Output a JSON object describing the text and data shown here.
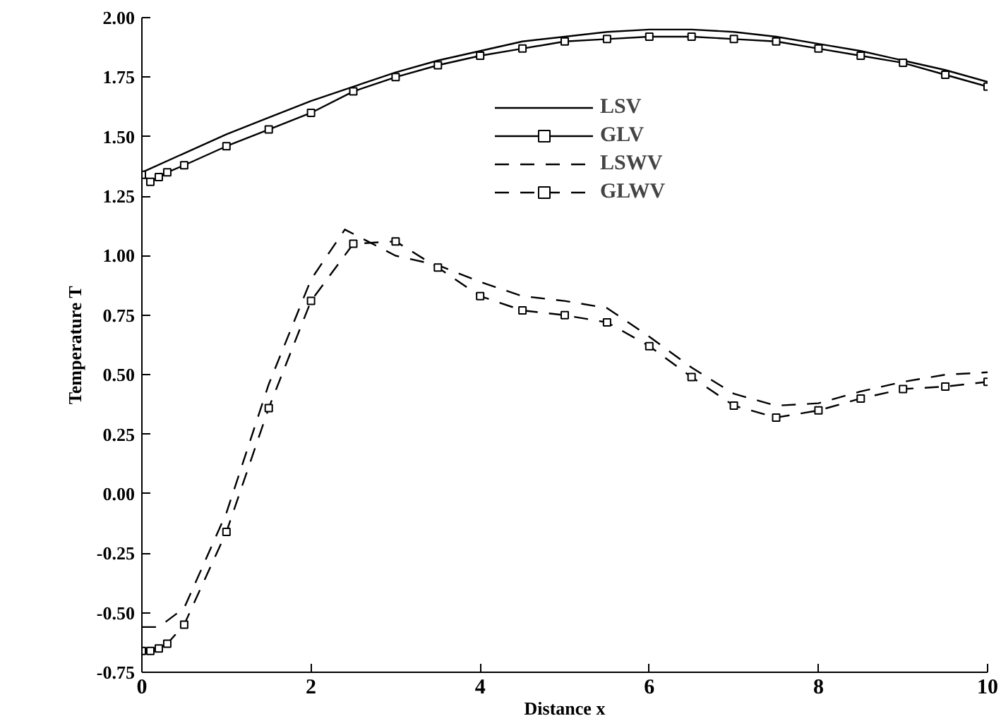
{
  "chart_data": {
    "type": "line",
    "xlabel": "Distance x",
    "ylabel": "Temperature T",
    "xlim": [
      0,
      10
    ],
    "ylim": [
      -0.75,
      2.0
    ],
    "xticks": [
      0,
      2,
      4,
      6,
      8,
      10
    ],
    "yticks": [
      {
        "value": -0.75,
        "label": "-0.75"
      },
      {
        "value": -0.5,
        "label": "-0.50"
      },
      {
        "value": -0.25,
        "label": "-0.25"
      },
      {
        "value": 0,
        "label": "0.00"
      },
      {
        "value": 0.25,
        "label": "0.25"
      },
      {
        "value": 0.5,
        "label": "0.50"
      },
      {
        "value": 0.75,
        "label": "0.75"
      },
      {
        "value": 1,
        "label": "1.00"
      },
      {
        "value": 1.25,
        "label": "1.25"
      },
      {
        "value": 1.5,
        "label": "1.50"
      },
      {
        "value": 1.75,
        "label": "1.75"
      },
      {
        "value": 2,
        "label": "2.00"
      }
    ],
    "grid": false,
    "legend": "top",
    "series": [
      {
        "name": "LSV",
        "color": "#000000",
        "line_style": "solid",
        "marker": "none",
        "x": [
          0,
          0.5,
          1,
          1.5,
          2,
          2.5,
          3,
          3.5,
          4,
          4.5,
          5,
          5.5,
          6,
          6.5,
          7,
          7.5,
          8,
          8.5,
          9,
          9.5,
          10
        ],
        "values": [
          1.35,
          1.43,
          1.51,
          1.58,
          1.65,
          1.71,
          1.77,
          1.82,
          1.86,
          1.9,
          1.92,
          1.94,
          1.95,
          1.95,
          1.94,
          1.92,
          1.89,
          1.86,
          1.82,
          1.78,
          1.73
        ]
      },
      {
        "name": "GLV",
        "color": "#000000",
        "line_style": "solid",
        "marker": "square",
        "x": [
          0,
          0.1,
          0.2,
          0.3,
          0.5,
          1,
          1.5,
          2,
          2.5,
          3,
          3.5,
          4,
          4.5,
          5,
          5.5,
          6,
          6.5,
          7,
          7.5,
          8,
          8.5,
          9,
          9.5,
          10
        ],
        "values": [
          1.34,
          1.31,
          1.33,
          1.35,
          1.38,
          1.46,
          1.53,
          1.6,
          1.69,
          1.75,
          1.8,
          1.84,
          1.87,
          1.9,
          1.91,
          1.92,
          1.92,
          1.91,
          1.9,
          1.87,
          1.84,
          1.81,
          1.76,
          1.71
        ]
      },
      {
        "name": "LSWV",
        "color": "#000000",
        "line_style": "dashed",
        "marker": "none",
        "x": [
          0,
          0.2,
          0.5,
          1,
          1.5,
          2,
          2.4,
          3,
          3.5,
          4,
          4.5,
          5,
          5.5,
          6,
          6.5,
          7,
          7.5,
          8,
          8.5,
          9,
          9.5,
          10
        ],
        "values": [
          -0.56,
          -0.56,
          -0.48,
          -0.08,
          0.46,
          0.9,
          1.11,
          1.0,
          0.96,
          0.89,
          0.83,
          0.81,
          0.78,
          0.66,
          0.53,
          0.42,
          0.37,
          0.38,
          0.43,
          0.47,
          0.5,
          0.51
        ]
      },
      {
        "name": "GLWV",
        "color": "#000000",
        "line_style": "dashed",
        "marker": "square",
        "x": [
          0,
          0.1,
          0.2,
          0.3,
          0.5,
          1,
          1.5,
          2,
          2.5,
          3,
          3.5,
          4,
          4.5,
          5,
          5.5,
          6,
          6.5,
          7,
          7.5,
          8,
          8.5,
          9,
          9.5,
          10
        ],
        "values": [
          -0.66,
          -0.66,
          -0.65,
          -0.63,
          -0.55,
          -0.16,
          0.36,
          0.81,
          1.05,
          1.06,
          0.95,
          0.83,
          0.77,
          0.75,
          0.72,
          0.62,
          0.49,
          0.37,
          0.32,
          0.35,
          0.4,
          0.44,
          0.45,
          0.47
        ]
      }
    ]
  }
}
